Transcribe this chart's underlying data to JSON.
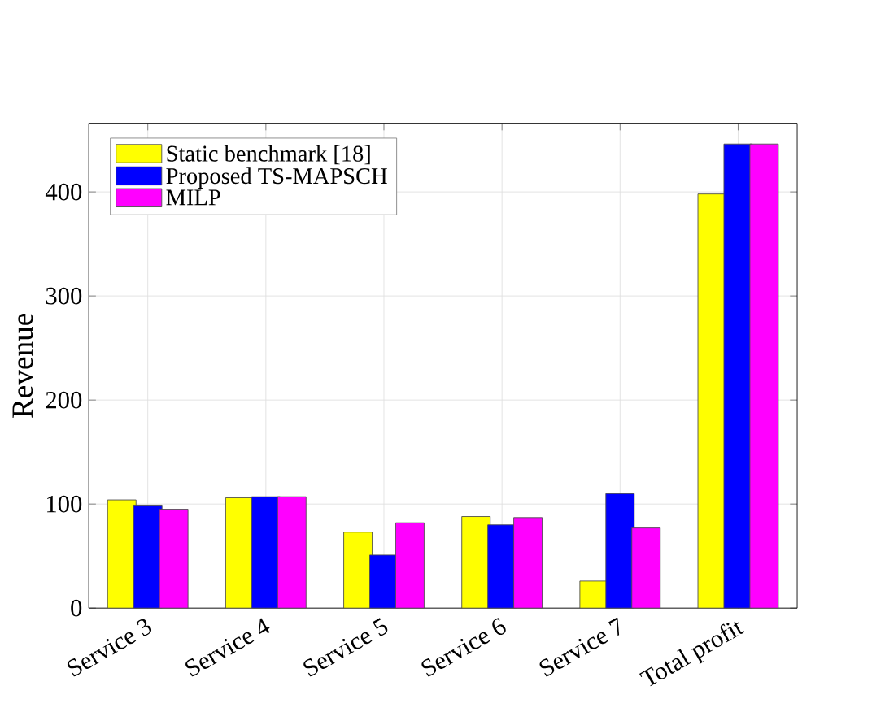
{
  "chart_data": {
    "type": "bar",
    "ylabel": "Revenue",
    "categories": [
      "Service 3",
      "Service 4",
      "Service 5",
      "Service 6",
      "Service 7",
      "Total profit"
    ],
    "series": [
      {
        "name": "Static benchmark [18]",
        "color": "#ffff00",
        "values": [
          104,
          106,
          73,
          88,
          26,
          398
        ]
      },
      {
        "name": "Proposed TS-MAPSCH",
        "color": "#0000ff",
        "values": [
          99,
          107,
          51,
          80,
          110,
          446
        ]
      },
      {
        "name": "MILP",
        "color": "#ff00ff",
        "values": [
          95,
          107,
          82,
          87,
          77,
          446
        ]
      }
    ],
    "ylim": [
      0,
      466
    ],
    "yticks": [
      0,
      100,
      200,
      300,
      400
    ],
    "grid": true,
    "legend": "top left"
  }
}
